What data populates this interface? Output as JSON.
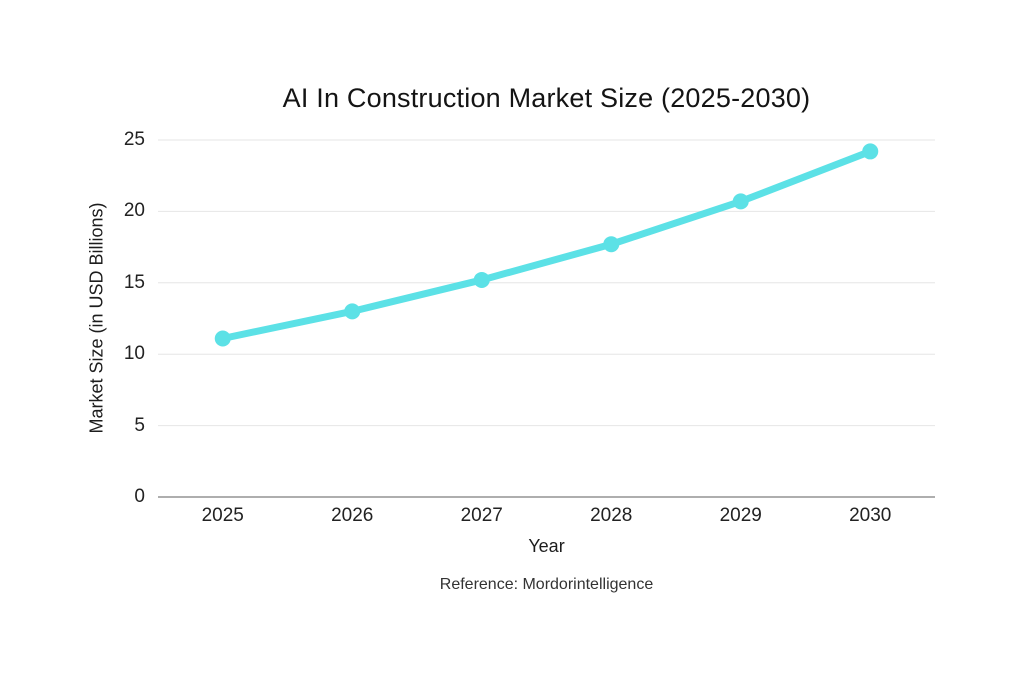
{
  "chart": {
    "title": "AI In Construction Market Size (2025-2030)",
    "xlabel": "Year",
    "ylabel": "Market Size (in USD Billions)",
    "reference": "Reference: Mordorintelligence",
    "colors": {
      "line": "#5CE1E6",
      "marker": "#5CE1E6",
      "gridline": "#e6e6e6",
      "zero_line": "#aeaeae",
      "text": "#222222",
      "background": "#ffffff"
    }
  },
  "chart_data": {
    "type": "line",
    "title": "AI In Construction Market Size (2025-2030)",
    "xlabel": "Year",
    "ylabel": "Market Size (in USD Billions)",
    "x": [
      "2025",
      "2026",
      "2027",
      "2028",
      "2029",
      "2030"
    ],
    "values": [
      11.1,
      13.0,
      15.2,
      17.7,
      20.7,
      24.2
    ],
    "ylim": [
      0,
      25
    ],
    "yticks": [
      0,
      5,
      10,
      15,
      20,
      25
    ],
    "grid": true,
    "legend": false,
    "marker": "circle",
    "line_color": "#5CE1E6",
    "annotation": "Reference: Mordorintelligence"
  }
}
